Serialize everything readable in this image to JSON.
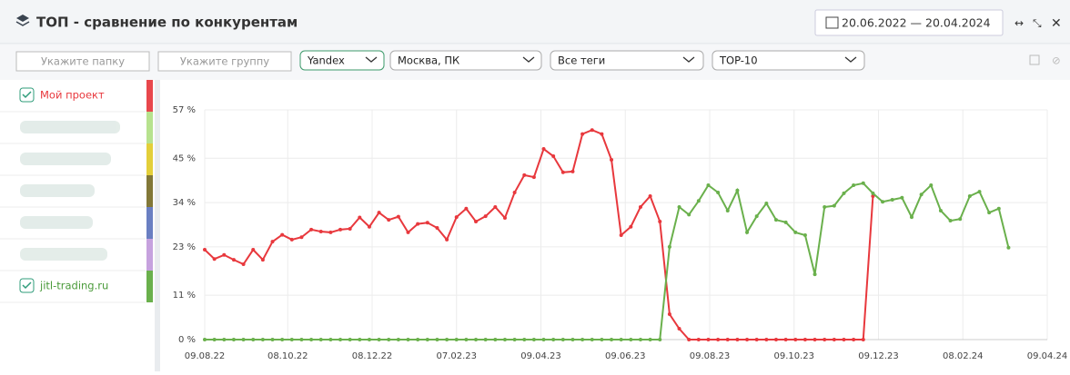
{
  "header": {
    "title": "ТОП - сравнение по конкурентам",
    "date_range": "20.06.2022 — 20.04.2024"
  },
  "filters": {
    "folder_placeholder": "Укажите папку",
    "group_placeholder": "Укажите группу",
    "search_engine": "Yandex",
    "region": "Москва, ПК",
    "tags": "Все теги",
    "top": "TOP-10"
  },
  "chart_data": {
    "type": "line",
    "x": [
      "09.08.22",
      "16.08.22",
      "23.08.22",
      "30.08.22",
      "06.09.22",
      "13.09.22",
      "20.09.22",
      "27.09.22",
      "04.10.22",
      "11.10.22",
      "18.10.22",
      "25.10.22",
      "01.11.22",
      "08.11.22",
      "15.11.22",
      "22.11.22",
      "29.11.22",
      "06.12.22",
      "13.12.22",
      "20.12.22",
      "27.12.22",
      "03.01.23",
      "10.01.23",
      "17.01.23",
      "24.01.23",
      "31.01.23",
      "07.02.23",
      "14.02.23",
      "21.02.23",
      "28.02.23",
      "07.03.23",
      "14.03.23",
      "21.03.23",
      "28.03.23",
      "04.04.23",
      "11.04.23",
      "18.04.23",
      "25.04.23",
      "02.05.23",
      "09.05.23",
      "16.05.23",
      "23.05.23",
      "30.05.23",
      "06.06.23",
      "13.06.23",
      "20.06.23",
      "27.06.23",
      "04.07.23",
      "11.07.23",
      "18.07.23",
      "25.07.23",
      "01.08.23",
      "08.08.23",
      "15.08.23",
      "22.08.23",
      "29.08.23",
      "05.09.23",
      "12.09.23",
      "19.09.23",
      "26.09.23",
      "03.10.23",
      "10.10.23",
      "17.10.23",
      "24.10.23",
      "31.10.23",
      "07.11.23",
      "14.11.23",
      "21.11.23",
      "28.11.23",
      "05.12.23",
      "12.12.23",
      "19.12.23",
      "26.12.23",
      "02.01.24",
      "09.01.24",
      "16.01.24",
      "23.01.24",
      "30.01.24",
      "06.02.24",
      "13.02.24",
      "20.02.24",
      "27.02.24",
      "05.03.24",
      "12.03.24"
    ],
    "series": [
      {
        "name": "Мой проект",
        "color": "#e8383d",
        "values": [
          22.3,
          20,
          21,
          19.8,
          18.7,
          22.3,
          19.8,
          24.3,
          26,
          24.8,
          25.4,
          27.3,
          26.8,
          26.6,
          27.3,
          27.5,
          30.3,
          28,
          31.5,
          29.7,
          30.5,
          26.6,
          28.7,
          29,
          27.7,
          24.8,
          30.4,
          32.5,
          29.3,
          30.6,
          32.9,
          30.2,
          36.5,
          40.8,
          40.3,
          47.3,
          45.5,
          41.5,
          41.7,
          51,
          52,
          51,
          44.6,
          25.9,
          28,
          32.9,
          35.6,
          29.3,
          6.3,
          2.7,
          0,
          0,
          0,
          0,
          0,
          0,
          0,
          0,
          0,
          0,
          0,
          0,
          0,
          0,
          0,
          0,
          0,
          0,
          0,
          35.6,
          null,
          null,
          null,
          null,
          null,
          null,
          null,
          null,
          null,
          null,
          null,
          null,
          null,
          null
        ]
      },
      {
        "name": "jitl-trading.ru",
        "color": "#6ab04c",
        "values": [
          0,
          0,
          0,
          0,
          0,
          0,
          0,
          0,
          0,
          0,
          0,
          0,
          0,
          0,
          0,
          0,
          0,
          0,
          0,
          0,
          0,
          0,
          0,
          0,
          0,
          0,
          0,
          0,
          0,
          0,
          0,
          0,
          0,
          0,
          0,
          0,
          0,
          0,
          0,
          0,
          0,
          0,
          0,
          0,
          0,
          0,
          0,
          0,
          23,
          32.9,
          31,
          34.4,
          38.3,
          36.5,
          32,
          37,
          26.6,
          30.6,
          33.8,
          29.7,
          29.1,
          26.6,
          25.9,
          16.2,
          32.9,
          33.2,
          36.3,
          38.3,
          38.8,
          36.3,
          34.2,
          34.7,
          35.2,
          30.4,
          36,
          38.3,
          32,
          29.5,
          29.9,
          35.6,
          36.7,
          31.5,
          32.5,
          22.8
        ]
      }
    ],
    "xlim": [
      "09.08.22",
      "09.04.24"
    ],
    "xticks": [
      "09.08.22",
      "08.10.22",
      "08.12.22",
      "07.02.23",
      "09.04.23",
      "09.06.23",
      "09.08.23",
      "09.10.23",
      "09.12.23",
      "08.02.24",
      "09.04.24"
    ],
    "ylim": [
      0,
      57
    ],
    "yticks": [
      {
        "value": 0,
        "label": "0 %"
      },
      {
        "value": 11,
        "label": "11 %"
      },
      {
        "value": 23,
        "label": "23 %"
      },
      {
        "value": 34,
        "label": "34 %"
      },
      {
        "value": 45,
        "label": "45 %"
      },
      {
        "value": 57,
        "label": "57 %"
      }
    ],
    "grid": true
  }
}
